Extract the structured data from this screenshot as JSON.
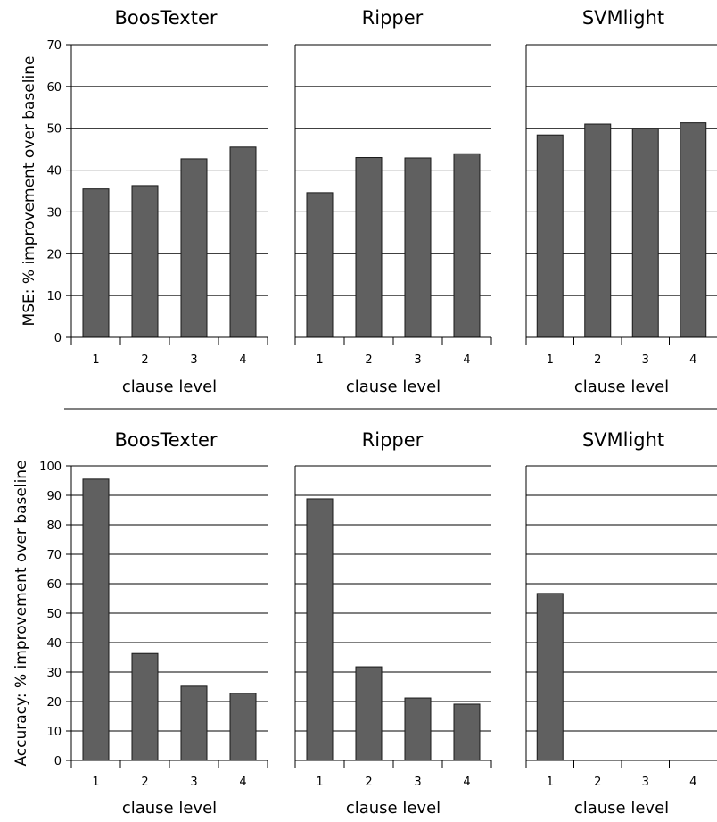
{
  "rows": [
    {
      "ylabel": "MSE: % improvement over baseline",
      "ylim": [
        0,
        70
      ],
      "yticks": [
        "0",
        "10",
        "20",
        "30",
        "40",
        "50",
        "60",
        "70"
      ]
    },
    {
      "ylabel": "Accuracy: % improvement over baseline",
      "ylim": [
        0,
        100
      ],
      "yticks": [
        "0",
        "10",
        "20",
        "30",
        "40",
        "50",
        "60",
        "70",
        "80",
        "90",
        "100"
      ]
    }
  ],
  "chart_data": [
    {
      "type": "bar",
      "title": "BoosTexter",
      "xlabel": "clause level",
      "ylabel": "MSE: % improvement over baseline",
      "categories": [
        "1",
        "2",
        "3",
        "4"
      ],
      "values": [
        35.5,
        36.3,
        42.7,
        45.5
      ],
      "ylim": [
        0,
        70
      ],
      "grid": true,
      "bar_color": "#606060"
    },
    {
      "type": "bar",
      "title": "Ripper",
      "xlabel": "clause level",
      "ylabel": "",
      "categories": [
        "1",
        "2",
        "3",
        "4"
      ],
      "values": [
        34.6,
        43.0,
        42.9,
        43.9
      ],
      "ylim": [
        0,
        70
      ],
      "grid": true,
      "bar_color": "#606060"
    },
    {
      "type": "bar",
      "title": "SVMlight",
      "xlabel": "clause level",
      "ylabel": "",
      "categories": [
        "1",
        "2",
        "3",
        "4"
      ],
      "values": [
        48.4,
        51.0,
        50.0,
        51.3
      ],
      "ylim": [
        0,
        70
      ],
      "grid": true,
      "bar_color": "#606060"
    },
    {
      "type": "bar",
      "title": "BoosTexter",
      "xlabel": "clause level",
      "ylabel": "Accuracy: % improvement over baseline",
      "categories": [
        "1",
        "2",
        "3",
        "4"
      ],
      "values": [
        95.5,
        36.3,
        25.2,
        22.8
      ],
      "ylim": [
        0,
        100
      ],
      "grid": true,
      "bar_color": "#606060"
    },
    {
      "type": "bar",
      "title": "Ripper",
      "xlabel": "clause level",
      "ylabel": "",
      "categories": [
        "1",
        "2",
        "3",
        "4"
      ],
      "values": [
        88.8,
        31.8,
        21.2,
        19.1
      ],
      "ylim": [
        0,
        100
      ],
      "grid": true,
      "bar_color": "#606060"
    },
    {
      "type": "bar",
      "title": "SVMlight",
      "xlabel": "clause level",
      "ylabel": "",
      "categories": [
        "1",
        "2",
        "3",
        "4"
      ],
      "values": [
        56.7,
        0,
        0,
        0
      ],
      "ylim": [
        0,
        100
      ],
      "grid": true,
      "bar_color": "#606060"
    }
  ]
}
